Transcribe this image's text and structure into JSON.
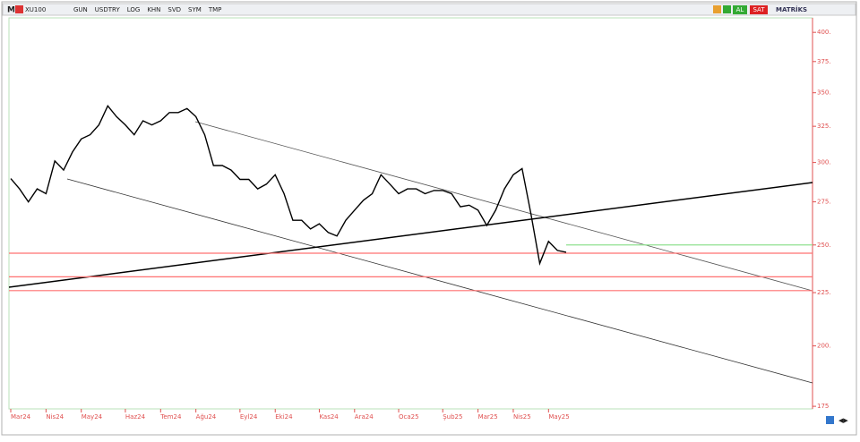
{
  "toolbar": {
    "logo": "M",
    "symbol": "XU100",
    "buttons": [
      "GUN",
      "USDTRY",
      "LOG",
      "KHN",
      "SVD",
      "SYM",
      "TMP"
    ],
    "buy": "AL",
    "sell": "SAT",
    "brand": "MATRİKS"
  },
  "chart_data": {
    "type": "line",
    "color": "#000000",
    "log_scale": true,
    "categories": [
      "Mar24",
      null,
      null,
      null,
      "Nis24",
      null,
      null,
      null,
      "May24",
      null,
      null,
      null,
      null,
      "Haz24",
      null,
      null,
      null,
      "Tem24",
      null,
      null,
      null,
      "Ağu24",
      null,
      null,
      null,
      null,
      "Eyl24",
      null,
      null,
      null,
      "Eki24",
      null,
      null,
      null,
      null,
      "Kas24",
      null,
      null,
      null,
      "Ara24",
      null,
      null,
      null,
      null,
      "Oca25",
      null,
      null,
      null,
      null,
      "Şub25",
      null,
      null,
      null,
      "Mar25",
      null,
      null,
      null,
      "Nis25",
      null,
      null,
      null,
      "May25",
      null,
      null
    ],
    "values": [
      289.5,
      283,
      275,
      283,
      280,
      301,
      295,
      307,
      316,
      319,
      326,
      340,
      332,
      326,
      319,
      329,
      326,
      329,
      335,
      335,
      338,
      332,
      319,
      298,
      298,
      295,
      289,
      289,
      283,
      286,
      292,
      280,
      264,
      264,
      259,
      262,
      257,
      255,
      264,
      270,
      276,
      280,
      292,
      286,
      280,
      283,
      283,
      280,
      282,
      282,
      280,
      272,
      273,
      270,
      261,
      270,
      283,
      292,
      296,
      268,
      240,
      252,
      247,
      246
    ],
    "ylim": [
      174,
      413
    ],
    "yticks": [
      {
        "value": 400,
        "label": "400."
      },
      {
        "value": 375,
        "label": "375."
      },
      {
        "value": 350,
        "label": "350."
      },
      {
        "value": 325,
        "label": "325."
      },
      {
        "value": 300,
        "label": "300."
      },
      {
        "value": 275,
        "label": "275."
      },
      {
        "value": 250,
        "label": "250."
      },
      {
        "value": 225,
        "label": "225."
      },
      {
        "value": 200,
        "label": "200."
      },
      {
        "value": 175,
        "label": "175"
      }
    ],
    "hlines": [
      {
        "value": 245.5,
        "color": "#ff7070",
        "from": 0
      },
      {
        "value": 233,
        "color": "#ff7070",
        "from": 0
      },
      {
        "value": 226,
        "color": "#ff7070",
        "from": 0
      },
      {
        "value": 250,
        "color": "#90e090",
        "from": 63
      }
    ]
  }
}
